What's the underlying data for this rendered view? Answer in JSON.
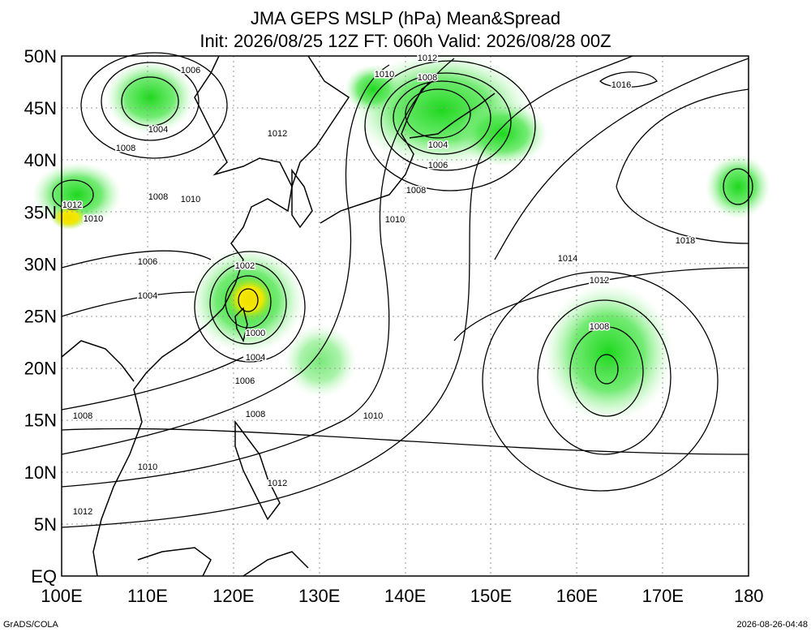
{
  "title": "JMA GEPS MSLP (hPa) Mean&Spread",
  "subtitle": "Init: 2026/08/25 12Z  FT: 060h  Valid: 2026/08/28 00Z",
  "lat_labels": [
    "50N",
    "45N",
    "40N",
    "35N",
    "30N",
    "25N",
    "20N",
    "15N",
    "10N",
    "5N",
    "EQ"
  ],
  "lon_labels": [
    "100E",
    "110E",
    "120E",
    "130E",
    "140E",
    "150E",
    "160E",
    "170E",
    "180"
  ],
  "contour_labels": [
    "1006",
    "1004",
    "1008",
    "1012",
    "1008",
    "1010",
    "1012",
    "1010",
    "1006",
    "1004",
    "1002",
    "1000",
    "1004",
    "1006",
    "1008",
    "1010",
    "1008",
    "1010",
    "1012",
    "1012",
    "1010",
    "1012",
    "1008",
    "1004",
    "1006",
    "1008",
    "1010",
    "1016",
    "1018",
    "1014",
    "1012",
    "1008"
  ],
  "footer_left": "GrADS/COLA",
  "footer_right": "2026-08-26-04:48"
}
